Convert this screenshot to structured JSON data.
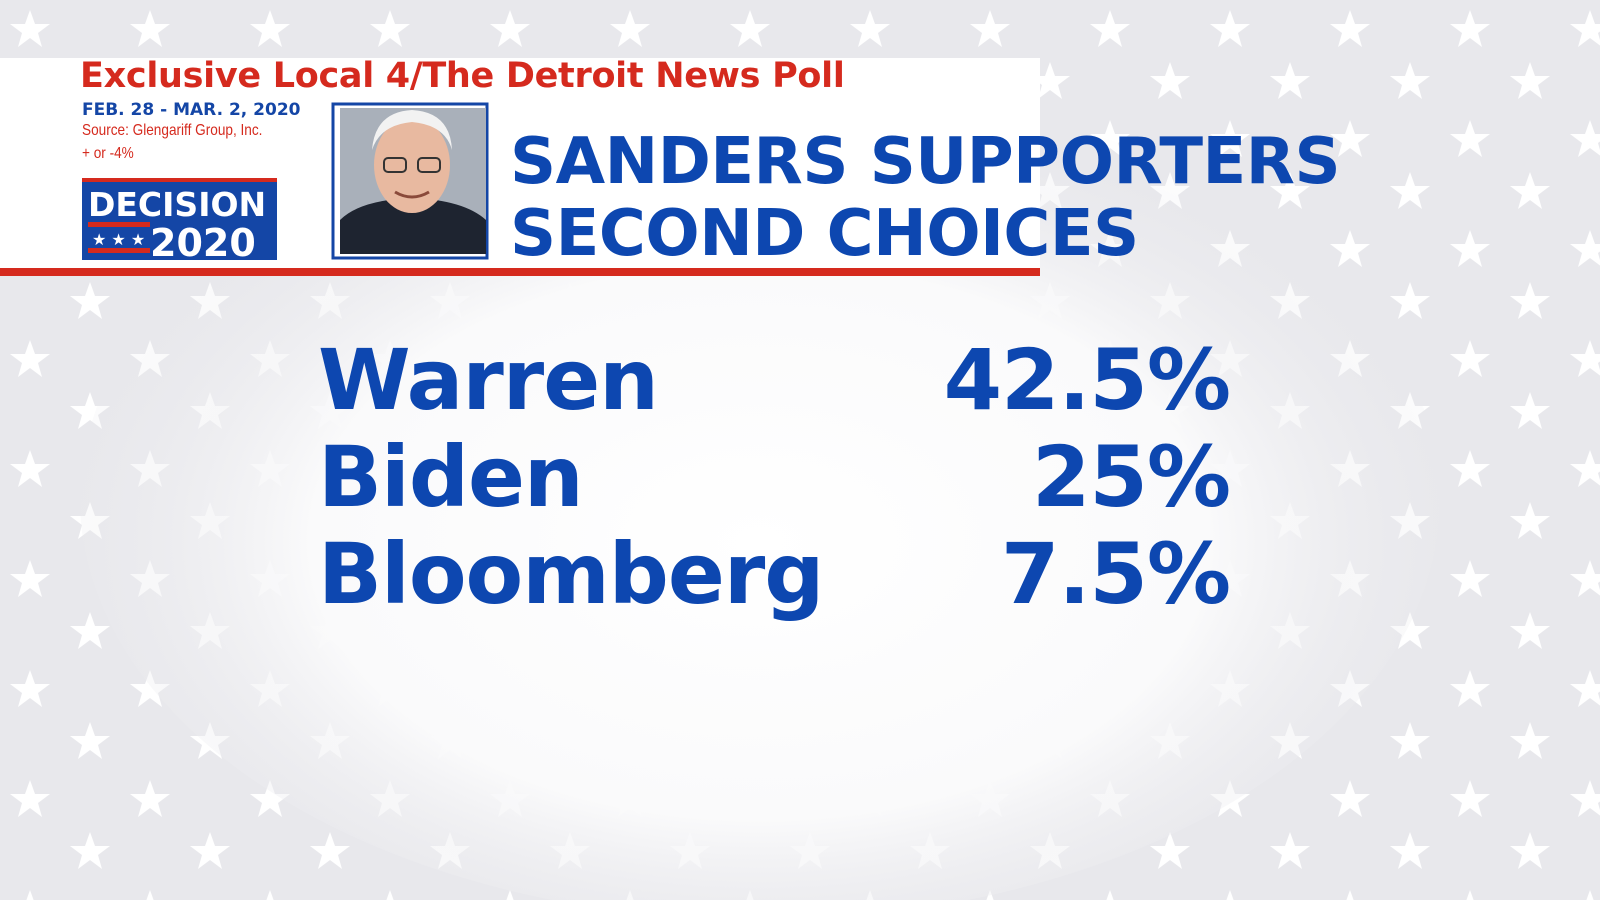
{
  "header": {
    "poll_title": "Exclusive Local 4/The Detroit News Poll",
    "dates": "FEB. 28 - MAR. 2, 2020",
    "source": "Source: Glengariff Group, Inc.",
    "margin": "+ or -4%",
    "logo": {
      "line1": "DECISION",
      "line2": "2020"
    },
    "headline": [
      "SANDERS SUPPORTERS",
      "SECOND CHOICES"
    ]
  },
  "table": {
    "rows": [
      [
        "Warren",
        "42.5%"
      ],
      [
        "Biden",
        "25%"
      ],
      [
        "Bloomberg",
        "7.5%"
      ]
    ]
  }
}
